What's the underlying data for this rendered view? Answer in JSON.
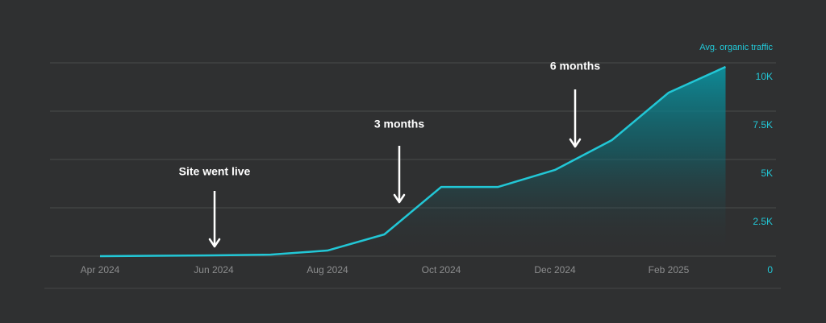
{
  "chart_data": {
    "type": "area",
    "y_axis_title": "Avg. organic traffic",
    "categories": [
      "Apr 2024",
      null,
      "Jun 2024",
      null,
      "Aug 2024",
      null,
      "Oct 2024",
      null,
      "Dec 2024",
      null,
      "Feb 2025",
      null
    ],
    "series": [
      {
        "name": "Avg. organic traffic",
        "color": "#22c7d6",
        "values": [
          0,
          20,
          40,
          80,
          290,
          1125,
          3580,
          3580,
          4460,
          6000,
          8460,
          9790
        ]
      }
    ],
    "ylim": [
      0,
      10000
    ],
    "yticks": [
      0,
      {
        "value": 2500,
        "label": "2.5K"
      },
      {
        "value": 5000,
        "label": "5K"
      },
      {
        "value": 7500,
        "label": "7.5K"
      },
      {
        "value": 10000,
        "label": "10K"
      }
    ],
    "grid": true,
    "annotations": [
      "Site went live",
      "3 months",
      "6 months"
    ]
  }
}
